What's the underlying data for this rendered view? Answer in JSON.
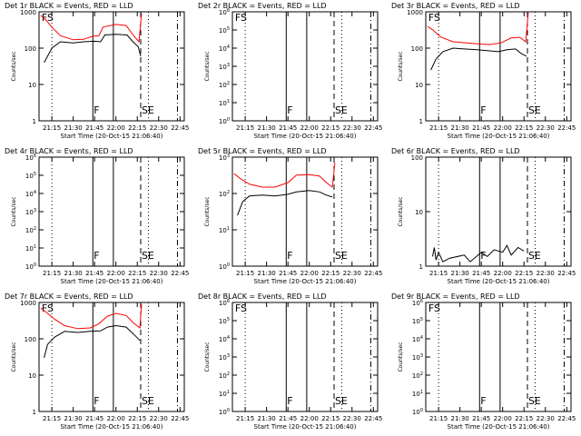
{
  "chart_data": [
    {
      "type": "line",
      "title": "Det 1r BLACK = Events, RED = LLD",
      "ylabel": "Counts/sec",
      "xlabel": "Start Time (20-Oct-15 21:06:40)",
      "yscale": "log",
      "ylim": [
        1,
        1000
      ],
      "yticks": [
        {
          "v": 1,
          "label": "1"
        },
        {
          "v": 10,
          "label": "10"
        },
        {
          "v": 100,
          "label": "100"
        },
        {
          "v": 1000,
          "label": "1000"
        }
      ],
      "xlim": [
        21.1,
        22.8
      ],
      "xticks": [
        "21:15",
        "21:30",
        "21:45",
        "22:00",
        "22:15",
        "22:30",
        "22:45"
      ],
      "markers": [
        "FS",
        "F",
        "SE"
      ],
      "events": [
        {
          "t": 21.16,
          "v": 40
        },
        {
          "t": 21.2,
          "v": 60
        },
        {
          "t": 21.25,
          "v": 100
        },
        {
          "t": 21.35,
          "v": 150
        },
        {
          "t": 21.5,
          "v": 140
        },
        {
          "t": 21.62,
          "v": 150
        },
        {
          "t": 21.75,
          "v": 155
        },
        {
          "t": 21.82,
          "v": 150
        },
        {
          "t": 21.87,
          "v": 230
        },
        {
          "t": 22.0,
          "v": 240
        },
        {
          "t": 22.13,
          "v": 230
        },
        {
          "t": 22.2,
          "v": 150
        },
        {
          "t": 22.26,
          "v": 110
        },
        {
          "t": 22.29,
          "v": 60
        }
      ],
      "lld": [
        {
          "t": 21.12,
          "v": 800
        },
        {
          "t": 21.18,
          "v": 600
        },
        {
          "t": 21.25,
          "v": 380
        },
        {
          "t": 21.35,
          "v": 220
        },
        {
          "t": 21.5,
          "v": 170
        },
        {
          "t": 21.62,
          "v": 175
        },
        {
          "t": 21.72,
          "v": 210
        },
        {
          "t": 21.8,
          "v": 220
        },
        {
          "t": 21.85,
          "v": 380
        },
        {
          "t": 22.0,
          "v": 450
        },
        {
          "t": 22.12,
          "v": 420
        },
        {
          "t": 22.2,
          "v": 230
        },
        {
          "t": 22.27,
          "v": 150
        },
        {
          "t": 22.3,
          "v": 900
        }
      ]
    },
    {
      "type": "line",
      "title": "Det 2r BLACK = Events, RED = LLD",
      "ylabel": "Counts/sec",
      "xlabel": "Start Time (20-Oct-15 21:06:40)",
      "yscale": "log",
      "ylim": [
        1,
        1000000
      ],
      "yticks": [
        {
          "v": 1,
          "label": "10^0"
        },
        {
          "v": 10,
          "label": "10^1"
        },
        {
          "v": 100,
          "label": "10^2"
        },
        {
          "v": 1000,
          "label": "10^3"
        },
        {
          "v": 10000,
          "label": "10^4"
        },
        {
          "v": 100000,
          "label": "10^5"
        },
        {
          "v": 1000000,
          "label": "10^6"
        }
      ],
      "xlim": [
        21.1,
        22.8
      ],
      "xticks": [
        "21:15",
        "21:30",
        "21:45",
        "22:00",
        "22:15",
        "22:30",
        "22:45"
      ],
      "markers": [
        "FS",
        "F",
        "SE"
      ],
      "events": [],
      "lld": []
    },
    {
      "type": "line",
      "title": "Det 3r BLACK = Events, RED = LLD",
      "ylabel": "Counts/sec",
      "xlabel": "Start Time (20-Oct-15 21:06:40)",
      "yscale": "log",
      "ylim": [
        1,
        1000
      ],
      "yticks": [
        {
          "v": 1,
          "label": "1"
        },
        {
          "v": 10,
          "label": "10"
        },
        {
          "v": 100,
          "label": "100"
        },
        {
          "v": 1000,
          "label": "1000"
        }
      ],
      "xlim": [
        21.1,
        22.8
      ],
      "xticks": [
        "21:15",
        "21:30",
        "21:45",
        "22:00",
        "22:15",
        "22:30",
        "22:45"
      ],
      "markers": [
        "FS",
        "F",
        "SE"
      ],
      "events": [
        {
          "t": 21.16,
          "v": 25
        },
        {
          "t": 21.22,
          "v": 50
        },
        {
          "t": 21.3,
          "v": 80
        },
        {
          "t": 21.42,
          "v": 100
        },
        {
          "t": 21.55,
          "v": 95
        },
        {
          "t": 21.7,
          "v": 90
        },
        {
          "t": 21.82,
          "v": 85
        },
        {
          "t": 21.95,
          "v": 80
        },
        {
          "t": 22.05,
          "v": 90
        },
        {
          "t": 22.15,
          "v": 95
        },
        {
          "t": 22.22,
          "v": 70
        },
        {
          "t": 22.28,
          "v": 60
        }
      ],
      "lld": [
        {
          "t": 21.12,
          "v": 400
        },
        {
          "t": 21.18,
          "v": 320
        },
        {
          "t": 21.28,
          "v": 200
        },
        {
          "t": 21.42,
          "v": 150
        },
        {
          "t": 21.58,
          "v": 140
        },
        {
          "t": 21.72,
          "v": 130
        },
        {
          "t": 21.85,
          "v": 125
        },
        {
          "t": 21.98,
          "v": 140
        },
        {
          "t": 22.1,
          "v": 190
        },
        {
          "t": 22.2,
          "v": 200
        },
        {
          "t": 22.27,
          "v": 150
        },
        {
          "t": 22.3,
          "v": 950
        }
      ]
    },
    {
      "type": "line",
      "title": "Det 4r BLACK = Events, RED = LLD",
      "ylabel": "Counts/sec",
      "xlabel": "Start Time (20-Oct-15 21:06:40)",
      "yscale": "log",
      "ylim": [
        1,
        1000000
      ],
      "yticks": [
        {
          "v": 1,
          "label": "10^0"
        },
        {
          "v": 10,
          "label": "10^1"
        },
        {
          "v": 100,
          "label": "10^2"
        },
        {
          "v": 1000,
          "label": "10^3"
        },
        {
          "v": 10000,
          "label": "10^4"
        },
        {
          "v": 100000,
          "label": "10^5"
        },
        {
          "v": 1000000,
          "label": "10^6"
        }
      ],
      "xlim": [
        21.1,
        22.8
      ],
      "xticks": [
        "21:15",
        "21:30",
        "21:45",
        "22:00",
        "22:15",
        "22:30",
        "22:45"
      ],
      "markers": [
        "F",
        "SE"
      ],
      "events": [],
      "lld": []
    },
    {
      "type": "line",
      "title": "Det 5r BLACK = Events, RED = LLD",
      "ylabel": "Counts/sec",
      "xlabel": "Start Time (20-Oct-15 21:06:40)",
      "yscale": "log",
      "ylim": [
        1,
        1000
      ],
      "yticks": [
        {
          "v": 1,
          "label": "10^0"
        },
        {
          "v": 10,
          "label": "10^1"
        },
        {
          "v": 100,
          "label": "10^2"
        },
        {
          "v": 1000,
          "label": "10^3"
        }
      ],
      "xlim": [
        21.1,
        22.8
      ],
      "xticks": [
        "21:15",
        "21:30",
        "21:45",
        "22:00",
        "22:15",
        "22:30",
        "22:45"
      ],
      "markers": [
        "F",
        "SE"
      ],
      "events": [
        {
          "t": 21.16,
          "v": 25
        },
        {
          "t": 21.22,
          "v": 60
        },
        {
          "t": 21.3,
          "v": 85
        },
        {
          "t": 21.45,
          "v": 90
        },
        {
          "t": 21.6,
          "v": 85
        },
        {
          "t": 21.75,
          "v": 95
        },
        {
          "t": 21.85,
          "v": 110
        },
        {
          "t": 22.0,
          "v": 120
        },
        {
          "t": 22.12,
          "v": 110
        },
        {
          "t": 22.2,
          "v": 90
        },
        {
          "t": 22.27,
          "v": 80
        }
      ],
      "lld": [
        {
          "t": 21.12,
          "v": 350
        },
        {
          "t": 21.2,
          "v": 250
        },
        {
          "t": 21.3,
          "v": 180
        },
        {
          "t": 21.45,
          "v": 150
        },
        {
          "t": 21.6,
          "v": 150
        },
        {
          "t": 21.75,
          "v": 200
        },
        {
          "t": 21.85,
          "v": 320
        },
        {
          "t": 22.0,
          "v": 330
        },
        {
          "t": 22.12,
          "v": 300
        },
        {
          "t": 22.2,
          "v": 200
        },
        {
          "t": 22.27,
          "v": 150
        },
        {
          "t": 22.3,
          "v": 700
        }
      ]
    },
    {
      "type": "line",
      "title": "Det 6r BLACK = Events, RED = LLD",
      "ylabel": "Counts/sec",
      "xlabel": "Start Time (20-Oct-15 21:06:40)",
      "yscale": "log",
      "ylim": [
        1,
        100
      ],
      "yticks": [
        {
          "v": 1,
          "label": "1"
        },
        {
          "v": 10,
          "label": "10"
        },
        {
          "v": 100,
          "label": "100"
        }
      ],
      "xlim": [
        21.1,
        22.8
      ],
      "xticks": [
        "21:15",
        "21:30",
        "21:45",
        "22:00",
        "22:15",
        "22:30",
        "22:45"
      ],
      "markers": [
        "F",
        "SE"
      ],
      "events": [
        {
          "t": 21.18,
          "v": 1.5
        },
        {
          "t": 21.2,
          "v": 2.2
        },
        {
          "t": 21.22,
          "v": 1.3
        },
        {
          "t": 21.25,
          "v": 1.8
        },
        {
          "t": 21.3,
          "v": 1.2
        },
        {
          "t": 21.38,
          "v": 1.4
        },
        {
          "t": 21.55,
          "v": 1.6
        },
        {
          "t": 21.62,
          "v": 1.2
        },
        {
          "t": 21.75,
          "v": 1.8
        },
        {
          "t": 21.82,
          "v": 1.5
        },
        {
          "t": 21.9,
          "v": 2.0
        },
        {
          "t": 22.0,
          "v": 1.8
        },
        {
          "t": 22.05,
          "v": 2.4
        },
        {
          "t": 22.1,
          "v": 1.6
        },
        {
          "t": 22.18,
          "v": 2.2
        },
        {
          "t": 22.25,
          "v": 1.9
        }
      ],
      "lld": []
    },
    {
      "type": "line",
      "title": "Det 7r BLACK = Events, RED = LLD",
      "ylabel": "Counts/sec",
      "xlabel": "Start Time (20-Oct-15 21:06:40)",
      "yscale": "log",
      "ylim": [
        1,
        1000
      ],
      "yticks": [
        {
          "v": 1,
          "label": "1"
        },
        {
          "v": 10,
          "label": "10"
        },
        {
          "v": 100,
          "label": "100"
        },
        {
          "v": 1000,
          "label": "1000"
        }
      ],
      "xlim": [
        21.1,
        22.8
      ],
      "xticks": [
        "21:15",
        "21:30",
        "21:45",
        "22:00",
        "22:15",
        "22:30",
        "22:45"
      ],
      "markers": [
        "FS",
        "F",
        "SE"
      ],
      "events": [
        {
          "t": 21.16,
          "v": 30
        },
        {
          "t": 21.2,
          "v": 70
        },
        {
          "t": 21.28,
          "v": 110
        },
        {
          "t": 21.4,
          "v": 160
        },
        {
          "t": 21.55,
          "v": 150
        },
        {
          "t": 21.7,
          "v": 160
        },
        {
          "t": 21.82,
          "v": 165
        },
        {
          "t": 21.9,
          "v": 210
        },
        {
          "t": 22.0,
          "v": 230
        },
        {
          "t": 22.12,
          "v": 210
        },
        {
          "t": 22.2,
          "v": 140
        },
        {
          "t": 22.28,
          "v": 90
        }
      ],
      "lld": [
        {
          "t": 21.12,
          "v": 700
        },
        {
          "t": 21.18,
          "v": 550
        },
        {
          "t": 21.28,
          "v": 350
        },
        {
          "t": 21.4,
          "v": 230
        },
        {
          "t": 21.55,
          "v": 190
        },
        {
          "t": 21.7,
          "v": 200
        },
        {
          "t": 21.8,
          "v": 260
        },
        {
          "t": 21.9,
          "v": 420
        },
        {
          "t": 22.0,
          "v": 500
        },
        {
          "t": 22.12,
          "v": 440
        },
        {
          "t": 22.2,
          "v": 280
        },
        {
          "t": 22.28,
          "v": 200
        },
        {
          "t": 22.3,
          "v": 900
        }
      ]
    },
    {
      "type": "line",
      "title": "Det 8r BLACK = Events, RED = LLD",
      "ylabel": "Counts/sec",
      "xlabel": "Start Time (20-Oct-15 21:06:40)",
      "yscale": "log",
      "ylim": [
        1,
        1000000
      ],
      "yticks": [
        {
          "v": 1,
          "label": "10^0"
        },
        {
          "v": 10,
          "label": "10^1"
        },
        {
          "v": 100,
          "label": "10^2"
        },
        {
          "v": 1000,
          "label": "10^3"
        },
        {
          "v": 10000,
          "label": "10^4"
        },
        {
          "v": 100000,
          "label": "10^5"
        },
        {
          "v": 1000000,
          "label": "10^6"
        }
      ],
      "xlim": [
        21.1,
        22.8
      ],
      "xticks": [
        "21:15",
        "21:30",
        "21:45",
        "22:00",
        "22:15",
        "22:30",
        "22:45"
      ],
      "markers": [
        "FS",
        "F",
        "SE"
      ],
      "events": [],
      "lld": []
    },
    {
      "type": "line",
      "title": "Det 9r BLACK = Events, RED = LLD",
      "ylabel": "Counts/sec",
      "xlabel": "Start Time (20-Oct-15 21:06:40)",
      "yscale": "log",
      "ylim": [
        1,
        1000000
      ],
      "yticks": [
        {
          "v": 1,
          "label": "10^0"
        },
        {
          "v": 10,
          "label": "10^1"
        },
        {
          "v": 100,
          "label": "10^2"
        },
        {
          "v": 1000,
          "label": "10^3"
        },
        {
          "v": 10000,
          "label": "10^4"
        },
        {
          "v": 100000,
          "label": "10^5"
        },
        {
          "v": 1000000,
          "label": "10^6"
        }
      ],
      "xlim": [
        21.1,
        22.8
      ],
      "xticks": [
        "21:15",
        "21:30",
        "21:45",
        "22:00",
        "22:15",
        "22:30",
        "22:45"
      ],
      "markers": [
        "FS",
        "F",
        "SE"
      ],
      "events": [],
      "lld": []
    }
  ],
  "colors": {
    "events": "#000000",
    "lld": "#ff0000",
    "axes": "#000000",
    "background": "#ffffff"
  }
}
